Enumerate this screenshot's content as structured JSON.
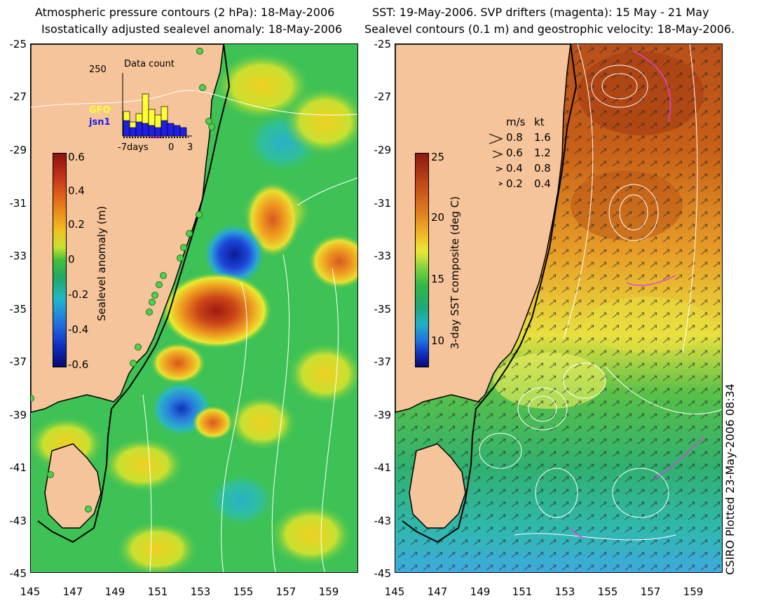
{
  "left_panel": {
    "title_line1": "Atmospheric pressure contours (2 hPa): 18-May-2006",
    "title_line2": "Isostatically adjusted sealevel anomaly: 18-May-2006",
    "colorbar_label": "Sealevel anomaly (m)",
    "colorbar_ticks": [
      "0.6",
      "0.4",
      "0.2",
      "0",
      "-0.2",
      "-0.4",
      "-0.6"
    ],
    "inset": {
      "title": "Data count",
      "max_label": "250",
      "series": [
        {
          "name": "GFO",
          "color": "#ffff33"
        },
        {
          "name": "jsn1",
          "color": "#1e1ee6"
        }
      ],
      "x_ticks": [
        "-7days",
        "0",
        "3"
      ]
    }
  },
  "right_panel": {
    "title_line1": "SST: 19-May-2006. SVP drifters (magenta): 15 May - 21 May",
    "title_line2": "Sealevel contours (0.1 m) and geostrophic velocity: 18-May-2006.",
    "colorbar_label": "3-day SST composite (deg C)",
    "colorbar_ticks": [
      "25",
      "20",
      "15",
      "10"
    ],
    "velocity_legend": {
      "header_ms": "m/s",
      "header_kt": "kt",
      "rows": [
        {
          "ms": "0.8",
          "kt": "1.6"
        },
        {
          "ms": "0.6",
          "kt": "1.2"
        },
        {
          "ms": "0.4",
          "kt": "0.8"
        },
        {
          "ms": "0.2",
          "kt": "0.4"
        }
      ]
    }
  },
  "y_ticks": [
    "-25",
    "-27",
    "-29",
    "-31",
    "-33",
    "-35",
    "-37",
    "-39",
    "-41",
    "-43",
    "-45"
  ],
  "x_ticks": [
    "145",
    "147",
    "149",
    "151",
    "153",
    "155",
    "157",
    "159"
  ],
  "footer": "CSIRO Plotted 23-May-2006 08:34",
  "colors": {
    "land": "#f5c49a",
    "ocean_base": "#3ec255",
    "sst_warm": "#c85a1a",
    "sst_cool": "#30b8a8"
  }
}
